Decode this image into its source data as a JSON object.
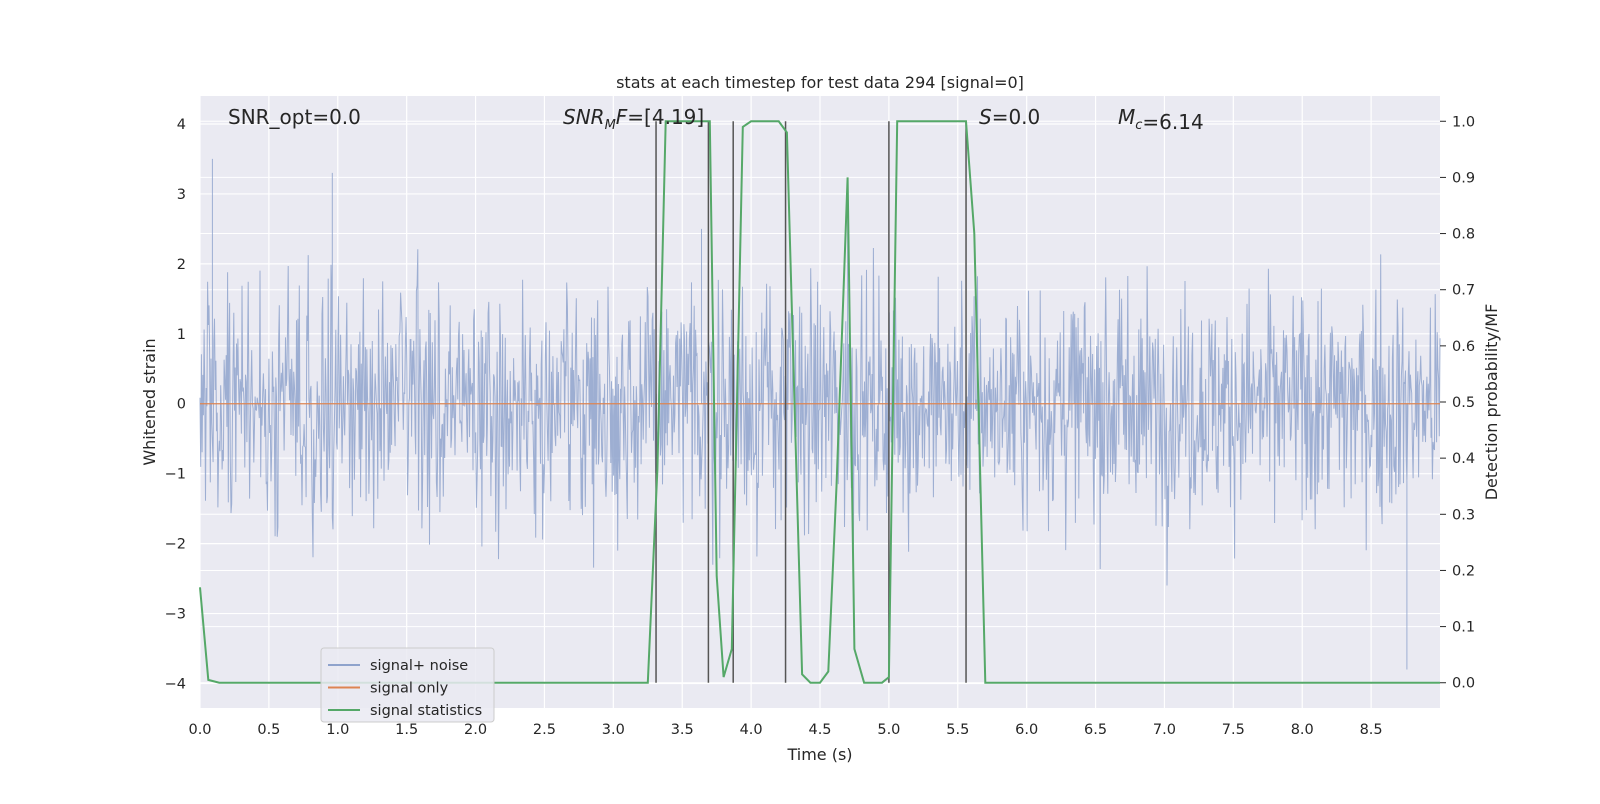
{
  "chart_data": {
    "type": "line",
    "title": "stats at each timestep for test data 294 [signal=0]",
    "xlabel": "Time (s)",
    "ylabel": "Whitened strain",
    "y2label": "Detection probability/MF",
    "xlim": [
      0.0,
      9.0
    ],
    "ylim": [
      -4.35,
      4.4
    ],
    "y2lim": [
      -0.045,
      1.045
    ],
    "grid": true,
    "legend_position": "lower-left",
    "x_ticks": [
      0.0,
      0.5,
      1.0,
      1.5,
      2.0,
      2.5,
      3.0,
      3.5,
      4.0,
      4.5,
      5.0,
      5.5,
      6.0,
      6.5,
      7.0,
      7.5,
      8.0,
      8.5
    ],
    "x_tick_labels": [
      "0.0",
      "0.5",
      "1.0",
      "1.5",
      "2.0",
      "2.5",
      "3.0",
      "3.5",
      "4.0",
      "4.5",
      "5.0",
      "5.5",
      "6.0",
      "6.5",
      "7.0",
      "7.5",
      "8.0",
      "8.5"
    ],
    "y_ticks": [
      4,
      3,
      2,
      1,
      0,
      -1,
      -2,
      -3,
      -4
    ],
    "y_tick_labels": [
      "4",
      "3",
      "2",
      "1",
      "0",
      "−1",
      "−2",
      "−3",
      "−4"
    ],
    "y2_ticks": [
      1.0,
      0.9,
      0.8,
      0.7,
      0.6,
      0.5,
      0.4,
      0.3,
      0.2,
      0.1,
      0.0
    ],
    "y2_tick_labels": [
      "1.0",
      "0.9",
      "0.8",
      "0.7",
      "0.6",
      "0.5",
      "0.4",
      "0.3",
      "0.2",
      "0.1",
      "0.0"
    ],
    "annotations": [
      {
        "id": "snr-opt",
        "text": "SNR_opt=0.0"
      },
      {
        "id": "snr-mf",
        "text": "SNR_MF=[4.19]"
      },
      {
        "id": "s-val",
        "text": "S=0.0"
      },
      {
        "id": "mc-val",
        "text": "M_c=6.14"
      }
    ],
    "series": [
      {
        "name": "signal+ noise",
        "color": "#8fa3cc",
        "description": "whitened strain noise, approx. Gaussian, amplitude within about ±3.6",
        "peak_samples": {
          "x": [
            0.09,
            0.96,
            3.64,
            4.7,
            8.76
          ],
          "y": [
            3.5,
            3.3,
            2.5,
            3.2,
            -3.8
          ]
        }
      },
      {
        "name": "signal only",
        "color": "#dd8452",
        "x": [
          0.0,
          9.0
        ],
        "y": [
          0.0,
          0.0
        ]
      },
      {
        "name": "signal statistics",
        "color": "#55a868",
        "axis": "right",
        "x": [
          0.0,
          0.06,
          0.14,
          3.25,
          3.32,
          3.38,
          3.7,
          3.75,
          3.8,
          3.86,
          3.94,
          4.0,
          4.2,
          4.26,
          4.37,
          4.43,
          4.5,
          4.56,
          4.62,
          4.7,
          4.75,
          4.82,
          4.95,
          5.0,
          5.06,
          5.56,
          5.62,
          5.7,
          9.0
        ],
        "y": [
          0.17,
          0.005,
          0.0,
          0.0,
          0.38,
          1.0,
          1.0,
          0.19,
          0.01,
          0.06,
          0.99,
          1.0,
          1.0,
          0.98,
          0.015,
          0.0,
          0.0,
          0.02,
          0.35,
          0.9,
          0.06,
          0.0,
          0.0,
          0.01,
          1.0,
          1.0,
          0.8,
          0.0,
          0.0
        ]
      }
    ],
    "vertical_markers": {
      "color": "#555555",
      "x": [
        3.31,
        3.69,
        3.87,
        4.25,
        5.0,
        5.56
      ],
      "y2_range": [
        0.0,
        1.0
      ]
    }
  }
}
